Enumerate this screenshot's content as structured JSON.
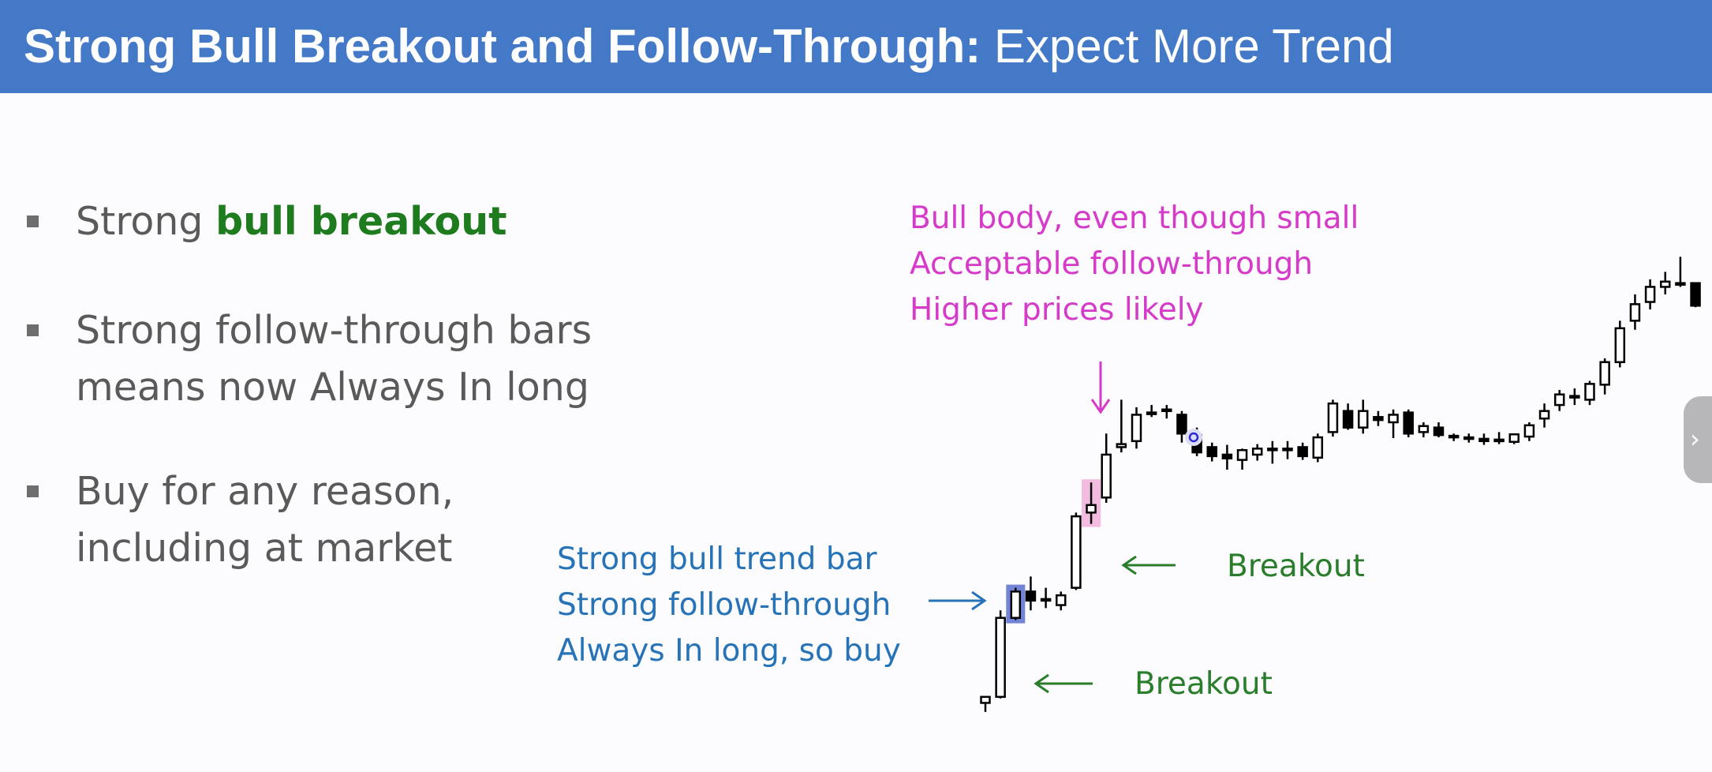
{
  "slide": {
    "title_bold": "Strong Bull Breakout and Follow-Through:",
    "title_rest": "Expect More Trend"
  },
  "bullets": [
    {
      "pre": "Strong ",
      "highlight": "bull breakout",
      "lines": []
    },
    {
      "pre": "",
      "highlight": "",
      "lines": [
        "Strong follow-through bars",
        "means now Always In long"
      ]
    },
    {
      "pre": "",
      "highlight": "",
      "lines": [
        "Buy for any reason,",
        "including at market"
      ]
    }
  ],
  "annotations": {
    "magenta": [
      "Bull body, even though small",
      "Acceptable follow-through",
      "Higher prices likely"
    ],
    "blue": [
      "Strong bull trend bar",
      "Strong follow-through",
      "Always In long, so buy"
    ],
    "breakout_upper": "Breakout",
    "breakout_lower": "Breakout"
  },
  "colors": {
    "title_bg": "#4379c7",
    "bull_highlight": "#1e7b1e",
    "magenta_note": "#d53ac9",
    "blue_note": "#2673b8",
    "breakout_note": "#2a7d2a",
    "blue_bar_highlight": "#5a6fcf",
    "pink_bar_highlight": "#f2a6d6"
  },
  "chart_data": {
    "type": "candlestick",
    "series_note": "price chart, no axes shown",
    "bars": [
      {
        "o": 52,
        "h": 55,
        "l": 40,
        "c": 60
      },
      {
        "o": 60,
        "h": 175,
        "l": 58,
        "c": 165
      },
      {
        "o": 165,
        "h": 205,
        "l": 162,
        "c": 200
      },
      {
        "o": 200,
        "h": 220,
        "l": 175,
        "c": 188
      },
      {
        "o": 188,
        "h": 205,
        "l": 178,
        "c": 190
      },
      {
        "o": 182,
        "h": 200,
        "l": 175,
        "c": 195
      },
      {
        "o": 205,
        "h": 305,
        "l": 202,
        "c": 300
      },
      {
        "o": 305,
        "h": 345,
        "l": 290,
        "c": 315
      },
      {
        "o": 325,
        "h": 410,
        "l": 318,
        "c": 382
      },
      {
        "o": 392,
        "h": 455,
        "l": 385,
        "c": 396
      },
      {
        "o": 400,
        "h": 445,
        "l": 390,
        "c": 435
      },
      {
        "o": 438,
        "h": 448,
        "l": 432,
        "c": 438
      },
      {
        "o": 440,
        "h": 448,
        "l": 430,
        "c": 442
      },
      {
        "o": 435,
        "h": 440,
        "l": 398,
        "c": 410
      },
      {
        "o": 408,
        "h": 418,
        "l": 380,
        "c": 385
      },
      {
        "o": 392,
        "h": 398,
        "l": 373,
        "c": 380
      },
      {
        "o": 382,
        "h": 395,
        "l": 362,
        "c": 377
      },
      {
        "o": 375,
        "h": 390,
        "l": 362,
        "c": 388
      },
      {
        "o": 382,
        "h": 396,
        "l": 374,
        "c": 390
      },
      {
        "o": 390,
        "h": 400,
        "l": 370,
        "c": 388
      },
      {
        "o": 388,
        "h": 400,
        "l": 376,
        "c": 390
      },
      {
        "o": 392,
        "h": 398,
        "l": 375,
        "c": 380
      },
      {
        "o": 378,
        "h": 410,
        "l": 372,
        "c": 405
      },
      {
        "o": 412,
        "h": 455,
        "l": 406,
        "c": 450
      },
      {
        "o": 440,
        "h": 450,
        "l": 415,
        "c": 418
      },
      {
        "o": 418,
        "h": 455,
        "l": 410,
        "c": 440
      },
      {
        "o": 432,
        "h": 440,
        "l": 420,
        "c": 428
      },
      {
        "o": 425,
        "h": 442,
        "l": 404,
        "c": 435
      },
      {
        "o": 438,
        "h": 442,
        "l": 405,
        "c": 410
      },
      {
        "o": 412,
        "h": 425,
        "l": 405,
        "c": 420
      },
      {
        "o": 418,
        "h": 425,
        "l": 405,
        "c": 408
      },
      {
        "o": 407,
        "h": 410,
        "l": 400,
        "c": 405
      },
      {
        "o": 405,
        "h": 410,
        "l": 398,
        "c": 405
      },
      {
        "o": 403,
        "h": 410,
        "l": 395,
        "c": 400
      },
      {
        "o": 402,
        "h": 412,
        "l": 396,
        "c": 400
      },
      {
        "o": 399,
        "h": 410,
        "l": 396,
        "c": 409
      },
      {
        "o": 406,
        "h": 425,
        "l": 400,
        "c": 421
      },
      {
        "o": 430,
        "h": 450,
        "l": 418,
        "c": 440
      },
      {
        "o": 448,
        "h": 468,
        "l": 440,
        "c": 462
      },
      {
        "o": 460,
        "h": 470,
        "l": 448,
        "c": 458
      },
      {
        "o": 455,
        "h": 480,
        "l": 448,
        "c": 476
      },
      {
        "o": 475,
        "h": 510,
        "l": 462,
        "c": 505
      },
      {
        "o": 505,
        "h": 560,
        "l": 498,
        "c": 550
      },
      {
        "o": 560,
        "h": 595,
        "l": 548,
        "c": 582
      },
      {
        "o": 585,
        "h": 615,
        "l": 575,
        "c": 605
      },
      {
        "o": 605,
        "h": 625,
        "l": 595,
        "c": 612
      },
      {
        "o": 610,
        "h": 645,
        "l": 605,
        "c": 610
      },
      {
        "o": 610,
        "h": 600,
        "l": 578,
        "c": 580
      }
    ],
    "highlighted_bars": [
      {
        "index": 2,
        "color": "blue"
      },
      {
        "index": 7,
        "color": "pink"
      }
    ]
  }
}
